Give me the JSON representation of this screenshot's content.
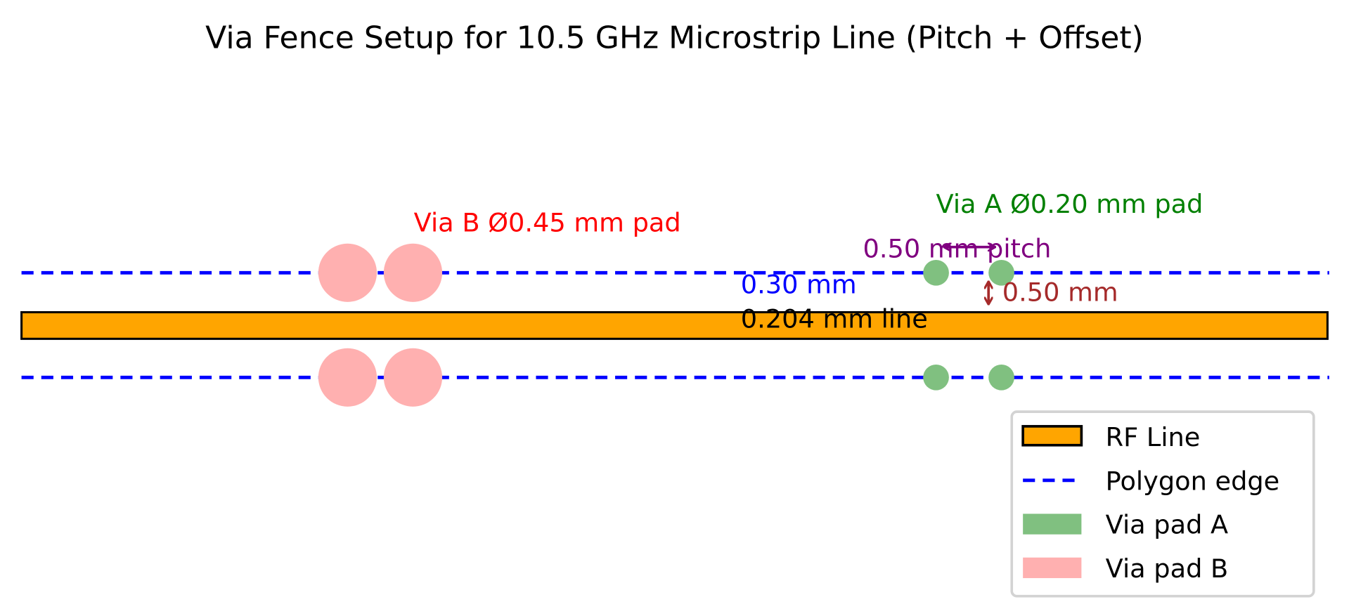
{
  "title": "Via Fence Setup for 10.5 GHz Microstrip Line (Pitch + Offset)",
  "colors": {
    "rf_line": "#ffa500",
    "polygon_edge": "#0000ff",
    "via_a": "#80c080",
    "via_b": "#ffb0b0",
    "via_a_label": "#008000",
    "via_b_label": "#ff0000",
    "pitch": "#800080",
    "offset": "#a52a2a",
    "gap": "#0000ff"
  },
  "annotations": {
    "via_b": "Via B Ø0.45 mm pad",
    "via_a": "Via A Ø0.20 mm pad",
    "pitch": "0.50 mm pitch",
    "gap": "0.30 mm",
    "line_width": "0.204 mm line",
    "offset": "0.50 mm"
  },
  "legend": {
    "placement": "upper-right",
    "items": [
      {
        "label": "RF Line",
        "kind": "rect-outline",
        "color": "#ffa500"
      },
      {
        "label": "Polygon edge",
        "kind": "dashed-line",
        "color": "#0000ff"
      },
      {
        "label": "Via pad A",
        "kind": "rect",
        "color": "#80c080"
      },
      {
        "label": "Via pad B",
        "kind": "rect",
        "color": "#ffb0b0"
      }
    ]
  }
}
